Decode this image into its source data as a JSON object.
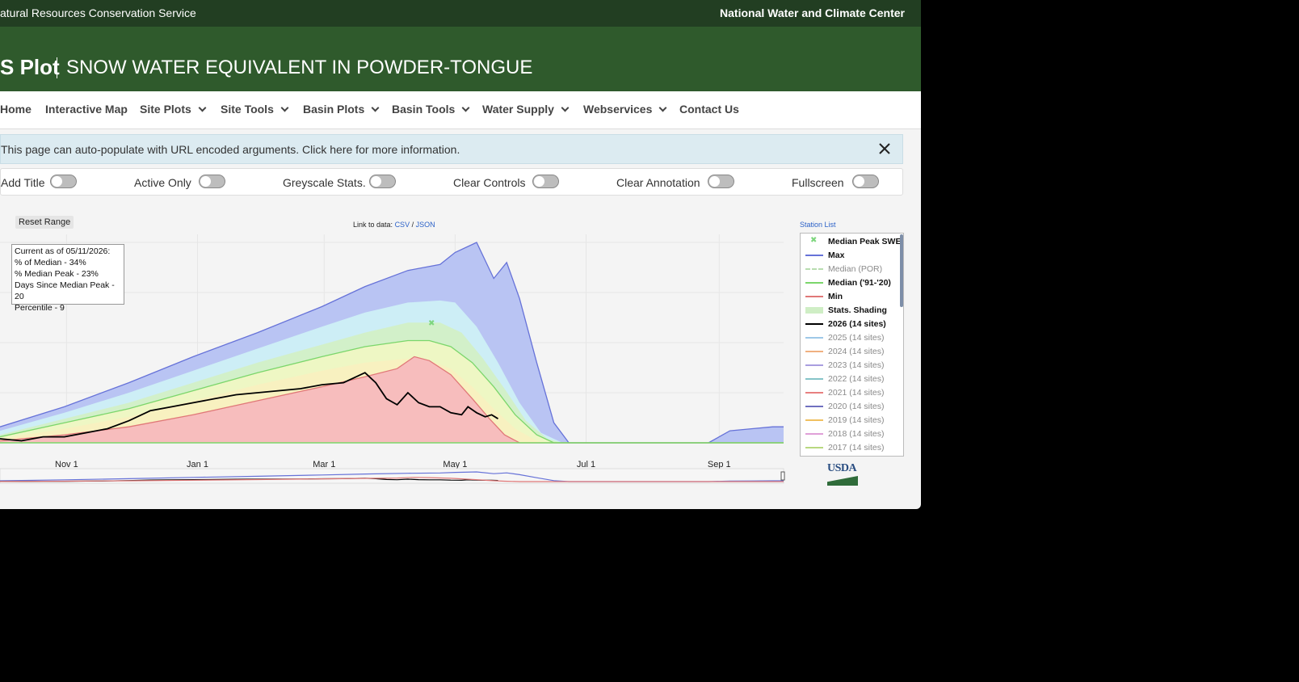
{
  "header": {
    "agency": "atural Resources Conservation Service",
    "center": "National Water and Climate Center",
    "plot_title": "S Plot",
    "subtitle": "SNOW WATER EQUIVALENT IN POWDER-TONGUE"
  },
  "nav": {
    "items": [
      {
        "label": "Home"
      },
      {
        "label": "Interactive Map"
      },
      {
        "label": "Site Plots"
      },
      {
        "label": "Site Tools"
      },
      {
        "label": "Basin Plots"
      },
      {
        "label": "Basin Tools"
      },
      {
        "label": "Water Supply"
      },
      {
        "label": "Webservices"
      },
      {
        "label": "Contact Us"
      }
    ]
  },
  "info_bar": {
    "text": "This page can auto-populate with URL encoded arguments. Click here for more information."
  },
  "toggles": [
    {
      "label": "Add Title",
      "on": false
    },
    {
      "label": "Active Only",
      "on": false
    },
    {
      "label": "Greyscale Stats.",
      "on": false
    },
    {
      "label": "Clear Controls",
      "on": false
    },
    {
      "label": "Clear Annotation",
      "on": false
    },
    {
      "label": "Fullscreen",
      "on": false
    }
  ],
  "controls": {
    "reset_range": "Reset Range",
    "link_prefix": "Link to data:",
    "csv": "CSV",
    "slash": "/",
    "json": "JSON",
    "station_list": "Station List"
  },
  "status_box": {
    "line1": "Current as of 05/11/2026:",
    "line2": "% of Median - 34%",
    "line3": "% Median Peak - 23%",
    "line4": "Days Since Median Peak - 20",
    "line5": "Percentile - 9"
  },
  "legend": [
    {
      "label": "Median Peak SWE",
      "color": "#7ed67e",
      "on": true,
      "marker": "x"
    },
    {
      "label": "Max",
      "color": "#6672d8",
      "on": true
    },
    {
      "label": "Median (POR)",
      "color": "#b8ddb0",
      "on": false,
      "dash": true
    },
    {
      "label": "Median ('91-'20)",
      "color": "#7bd66b",
      "on": true
    },
    {
      "label": "Min",
      "color": "#e07878",
      "on": true
    },
    {
      "label": "Stats. Shading",
      "color": "#cfeec5",
      "on": true,
      "thick": true
    },
    {
      "label": "2026 (14 sites)",
      "color": "#000000",
      "on": true
    },
    {
      "label": "2025 (14 sites)",
      "color": "#9ec8e8",
      "on": false
    },
    {
      "label": "2024 (14 sites)",
      "color": "#f0b080",
      "on": false
    },
    {
      "label": "2023 (14 sites)",
      "color": "#a99ee0",
      "on": false
    },
    {
      "label": "2022 (14 sites)",
      "color": "#86c4c8",
      "on": false
    },
    {
      "label": "2021 (14 sites)",
      "color": "#e88080",
      "on": false
    },
    {
      "label": "2020 (14 sites)",
      "color": "#7070c0",
      "on": false
    },
    {
      "label": "2019 (14 sites)",
      "color": "#f0c060",
      "on": false
    },
    {
      "label": "2018 (14 sites)",
      "color": "#e0a0d8",
      "on": false
    },
    {
      "label": "2017 (14 sites)",
      "color": "#b8d880",
      "on": false
    }
  ],
  "chart_data": {
    "type": "area",
    "x_ticks": [
      "Nov 1",
      "Jan 1",
      "Mar 1",
      "May 1",
      "Jul 1",
      "Sep 1"
    ],
    "x_tick_days": [
      31,
      92,
      151,
      212,
      273,
      335
    ],
    "x_range_days": [
      0,
      365
    ],
    "y_range": [
      0,
      100
    ],
    "grid": true,
    "legend_position": "right",
    "series": [
      {
        "name": "Max",
        "color": "#6672d8",
        "points": [
          [
            0,
            8
          ],
          [
            30,
            18
          ],
          [
            60,
            30
          ],
          [
            90,
            43
          ],
          [
            120,
            55
          ],
          [
            150,
            68
          ],
          [
            170,
            78
          ],
          [
            190,
            86
          ],
          [
            205,
            89
          ],
          [
            212,
            95
          ],
          [
            222,
            100
          ],
          [
            230,
            82
          ],
          [
            236,
            90
          ],
          [
            242,
            72
          ],
          [
            250,
            40
          ],
          [
            258,
            10
          ],
          [
            265,
            0
          ],
          [
            330,
            0
          ],
          [
            340,
            6
          ],
          [
            350,
            7
          ],
          [
            360,
            8
          ],
          [
            365,
            8
          ]
        ]
      },
      {
        "name": "Max shading",
        "color": "#b7c3f4",
        "points": [
          [
            0,
            6
          ],
          [
            30,
            15
          ],
          [
            60,
            25
          ],
          [
            90,
            36
          ],
          [
            120,
            47
          ],
          [
            150,
            58
          ],
          [
            170,
            65
          ],
          [
            190,
            70
          ],
          [
            205,
            71
          ],
          [
            212,
            70
          ],
          [
            222,
            58
          ],
          [
            232,
            40
          ],
          [
            242,
            20
          ],
          [
            252,
            5
          ],
          [
            262,
            0
          ],
          [
            365,
            0
          ]
        ]
      },
      {
        "name": "Upper quartile shading",
        "color": "#cdeef6",
        "points": [
          [
            0,
            4
          ],
          [
            30,
            12
          ],
          [
            60,
            20
          ],
          [
            90,
            30
          ],
          [
            120,
            40
          ],
          [
            150,
            49
          ],
          [
            170,
            55
          ],
          [
            190,
            60
          ],
          [
            205,
            60
          ],
          [
            215,
            55
          ],
          [
            225,
            42
          ],
          [
            235,
            27
          ],
          [
            245,
            11
          ],
          [
            255,
            2
          ],
          [
            262,
            0
          ],
          [
            365,
            0
          ]
        ]
      },
      {
        "name": "Median ('91-'20)",
        "color": "#7bd66b",
        "points": [
          [
            0,
            3
          ],
          [
            30,
            10
          ],
          [
            60,
            17
          ],
          [
            90,
            26
          ],
          [
            120,
            35
          ],
          [
            150,
            43
          ],
          [
            170,
            48
          ],
          [
            190,
            51
          ],
          [
            200,
            51
          ],
          [
            210,
            48
          ],
          [
            220,
            40
          ],
          [
            230,
            28
          ],
          [
            240,
            14
          ],
          [
            250,
            4
          ],
          [
            258,
            0
          ],
          [
            365,
            0
          ]
        ]
      },
      {
        "name": "Lower quartile shading",
        "color": "#f8f1c0",
        "points": [
          [
            0,
            2
          ],
          [
            30,
            7
          ],
          [
            60,
            13
          ],
          [
            90,
            21
          ],
          [
            120,
            29
          ],
          [
            150,
            36
          ],
          [
            170,
            40
          ],
          [
            190,
            42
          ],
          [
            200,
            41
          ],
          [
            210,
            37
          ],
          [
            220,
            28
          ],
          [
            230,
            17
          ],
          [
            240,
            7
          ],
          [
            250,
            1
          ],
          [
            256,
            0
          ],
          [
            365,
            0
          ]
        ]
      },
      {
        "name": "Min",
        "color": "#e07878",
        "points": [
          [
            0,
            1
          ],
          [
            30,
            4
          ],
          [
            60,
            8
          ],
          [
            90,
            14
          ],
          [
            120,
            21
          ],
          [
            150,
            28
          ],
          [
            170,
            33
          ],
          [
            185,
            37
          ],
          [
            193,
            43
          ],
          [
            200,
            41
          ],
          [
            210,
            34
          ],
          [
            220,
            22
          ],
          [
            228,
            12
          ],
          [
            235,
            4
          ],
          [
            242,
            0
          ],
          [
            365,
            0
          ]
        ]
      },
      {
        "name": "2026 (14 sites)",
        "color": "#000000",
        "points": [
          [
            0,
            2
          ],
          [
            10,
            1
          ],
          [
            20,
            3
          ],
          [
            30,
            3
          ],
          [
            40,
            5
          ],
          [
            50,
            7
          ],
          [
            60,
            11
          ],
          [
            70,
            16
          ],
          [
            80,
            18
          ],
          [
            90,
            20
          ],
          [
            100,
            22
          ],
          [
            110,
            24
          ],
          [
            120,
            25
          ],
          [
            130,
            26
          ],
          [
            140,
            27
          ],
          [
            150,
            29
          ],
          [
            160,
            30
          ],
          [
            170,
            35
          ],
          [
            175,
            30
          ],
          [
            180,
            22
          ],
          [
            185,
            19
          ],
          [
            190,
            25
          ],
          [
            195,
            20
          ],
          [
            200,
            18
          ],
          [
            205,
            18
          ],
          [
            210,
            15
          ],
          [
            215,
            14
          ],
          [
            218,
            18
          ],
          [
            222,
            15
          ],
          [
            226,
            13
          ],
          [
            229,
            14
          ],
          [
            232,
            12
          ]
        ]
      }
    ],
    "median_peak": {
      "x": 201,
      "y": 60
    }
  }
}
